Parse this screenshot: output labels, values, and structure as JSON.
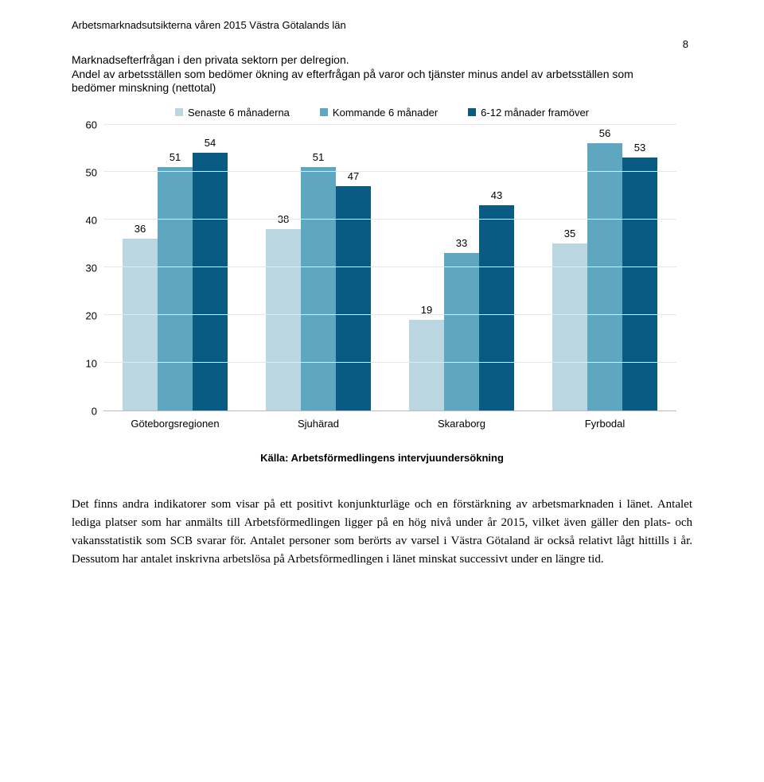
{
  "page": {
    "running_header": "Arbetsmarknadsutsikterna våren 2015 Västra Götalands län",
    "page_number": "8"
  },
  "chart": {
    "type": "grouped-bar",
    "title": "Marknadsefterfrågan i den privata sektorn per delregion.",
    "subtitle": "Andel av arbetsställen som bedömer ökning av efterfrågan på varor och tjänster minus andel av arbetsställen som bedömer minskning (nettotal)",
    "ylim": [
      0,
      60
    ],
    "ytick_step": 10,
    "yticks": [
      0,
      10,
      20,
      30,
      40,
      50,
      60
    ],
    "grid_color": "#e6e6e6",
    "axis_color": "#bdbdbd",
    "background_color": "#ffffff",
    "label_fontsize": 13,
    "legend": {
      "items": [
        {
          "label": "Senaste 6 månaderna",
          "color": "#bad7e1"
        },
        {
          "label": "Kommande 6 månader",
          "color": "#5fa6c1"
        },
        {
          "label": "6-12 månader framöver",
          "color": "#095b83"
        }
      ],
      "marker_color": "#a6a6a6"
    },
    "categories": [
      "Göteborgsregionen",
      "Sjuhärad",
      "Skaraborg",
      "Fyrbodal"
    ],
    "series": [
      {
        "name": "Senaste 6 månaderna",
        "color": "#bad7e1",
        "values": [
          36,
          38,
          19,
          35
        ]
      },
      {
        "name": "Kommande 6 månader",
        "color": "#5fa6c1",
        "values": [
          51,
          51,
          33,
          56
        ]
      },
      {
        "name": "6-12 månader framöver",
        "color": "#095b83",
        "values": [
          54,
          47,
          43,
          53
        ]
      }
    ],
    "source": "Källa: Arbetsförmedlingens intervjuundersökning"
  },
  "body_text": "Det finns andra indikatorer som visar på ett positivt konjunkturläge och en förstärkning av arbetsmarknaden i länet. Antalet lediga platser som har anmälts till Arbetsförmedlingen ligger på en hög nivå under år 2015, vilket även gäller den plats- och vakansstatistik som SCB svarar för. Antalet personer som berörts av varsel i Västra Götaland är också relativt lågt hittills i år. Dessutom har antalet inskrivna arbetslösa på Arbetsförmedlingen i länet minskat successivt under en längre tid."
}
